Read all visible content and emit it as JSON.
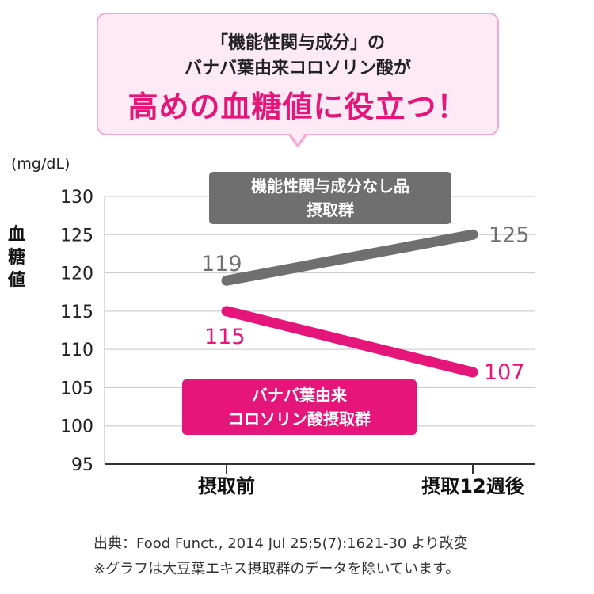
{
  "bubble": {
    "line1": "「機能性関与成分」の",
    "line2": "バナバ葉由来コロソリン酸が",
    "line3": "高めの血糖値に役立つ！"
  },
  "chart_data": {
    "type": "line",
    "unit": "(mg/dL)",
    "ylabel": "血糖値",
    "categories": [
      "摂取前",
      "摂取12週後"
    ],
    "ylim": [
      95,
      130
    ],
    "yticks": [
      95,
      100,
      105,
      110,
      115,
      120,
      125,
      130
    ],
    "grid": true,
    "series": [
      {
        "name": "機能性関与成分なし品摂取群",
        "label_lines": [
          "機能性関与成分なし品",
          "摂取群"
        ],
        "values": [
          119,
          125
        ],
        "color": "#6f6f6f"
      },
      {
        "name": "バナバ葉由来コロソリン酸摂取群",
        "label_lines": [
          "バナバ葉由来",
          "コロソリン酸摂取群"
        ],
        "values": [
          115,
          107
        ],
        "color": "#e5157a"
      }
    ]
  },
  "footnotes": {
    "source": "出典：Food Funct., 2014 Jul 25;5(7):1621-30 より改変",
    "note": "※グラフは大豆葉エキス摂取群のデータを除いています。"
  }
}
